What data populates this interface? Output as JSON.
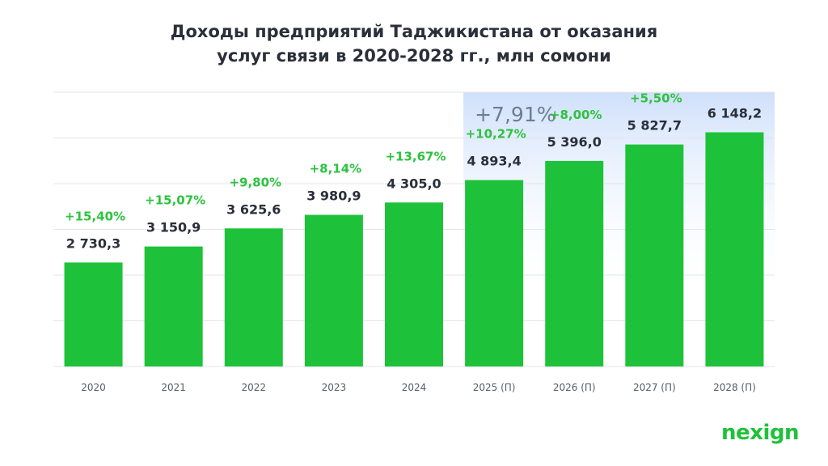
{
  "chart_data": {
    "type": "bar",
    "title_line1": "Доходы предприятий Таджикистана от оказания",
    "title_line2": "услуг связи в 2020-2028 гг., млн сомони",
    "categories": [
      "2020",
      "2021",
      "2022",
      "2023",
      "2024",
      "2025 (П)",
      "2026 (П)",
      "2027 (П)",
      "2028 (П)"
    ],
    "values": [
      2730.3,
      3150.9,
      3625.6,
      3980.9,
      4305.0,
      4893.4,
      5396.0,
      5827.7,
      6148.2
    ],
    "value_labels": [
      "2 730,3",
      "3 150,9",
      "3 625,6",
      "3 980,9",
      "4 305,0",
      "4 893,4",
      "5 396,0",
      "5 827,7",
      "6 148,2"
    ],
    "growth_labels": [
      "+15,40%",
      "+15,07%",
      "+9,80%",
      "+8,14%",
      "+13,67%",
      "+10,27%",
      "+8,00%",
      "+5,50%",
      ""
    ],
    "forecast_highlight": {
      "label": "+7,91%",
      "from_index": 5
    },
    "ylim": [
      0,
      7200
    ],
    "grid": true,
    "colors": {
      "bar": "#1ec23a",
      "growth_text": "#2ec23f",
      "value_text": "#2a2f3a",
      "highlight_top": "#cfe0fb",
      "highlight_bottom": "#ffffff",
      "highlight_text": "#6b7c93",
      "grid": "#e3e5e8",
      "axis_text": "#555b66"
    }
  },
  "brand": {
    "logo_text": "nexign"
  }
}
